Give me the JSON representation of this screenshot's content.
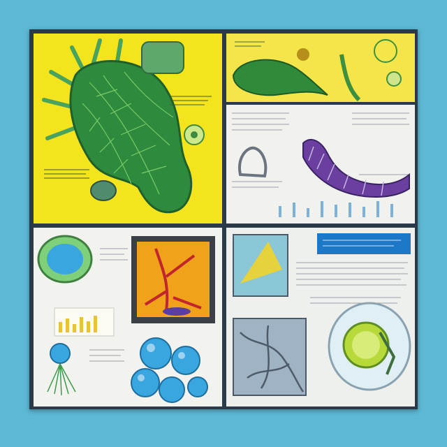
{
  "image": {
    "description_colors": {
      "background": "#5cb8d4",
      "frame": "#2b3a48",
      "yellow": "#f3e41e",
      "leaf_green": "#2f8a3a",
      "purple": "#6b3fa0",
      "blue_cell": "#3aa6e0",
      "orange": "#f0a21a"
    }
  }
}
